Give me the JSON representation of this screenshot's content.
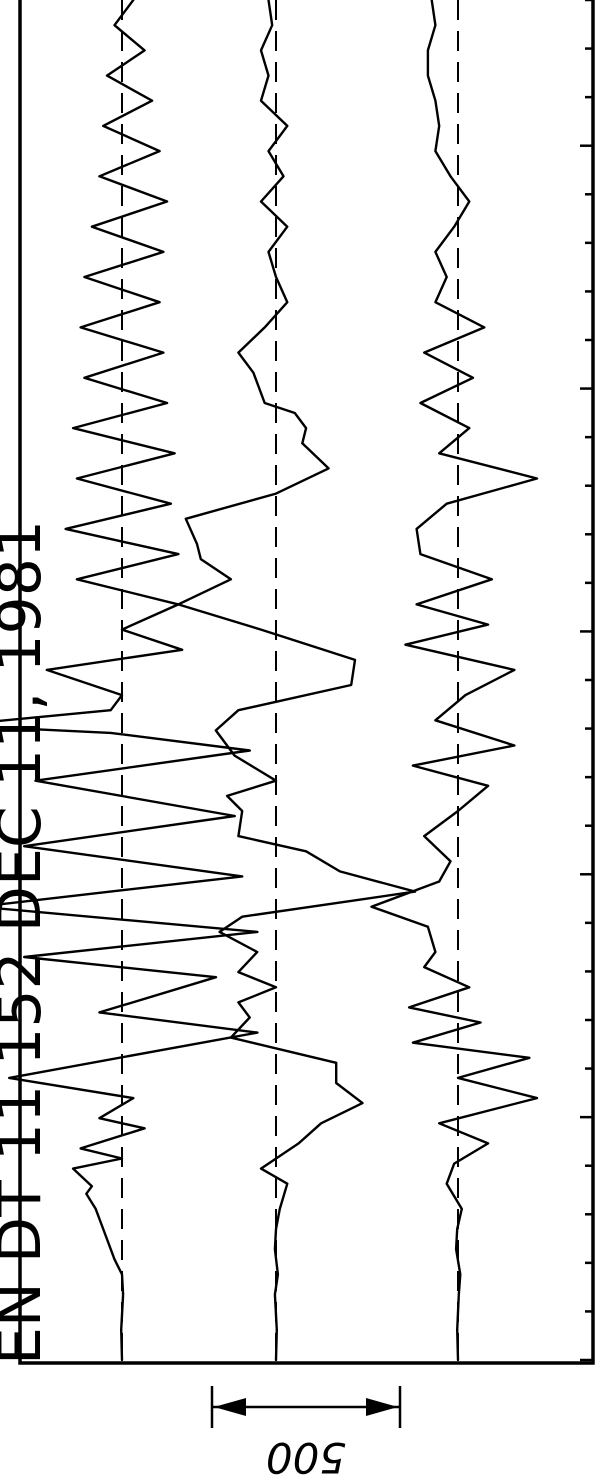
{
  "chart_data": {
    "type": "line",
    "title": "EN  DT  11  152    DEC 11, 1981",
    "scale_bar": {
      "label": "500",
      "value": 500
    },
    "grid": false,
    "legend": "none",
    "x_ticks": 29,
    "series": [
      {
        "values": [
          [
            0,
            0
          ],
          [
            60,
            -2
          ],
          [
            130,
            3
          ],
          [
            170,
            0
          ],
          [
            200,
            -20
          ],
          [
            260,
            -50
          ],
          [
            300,
            -70
          ],
          [
            330,
            -95
          ],
          [
            345,
            -80
          ],
          [
            380,
            -130
          ],
          [
            400,
            0
          ],
          [
            420,
            -110
          ],
          [
            460,
            60
          ],
          [
            480,
            -60
          ],
          [
            520,
            30
          ],
          [
            560,
            -300
          ],
          [
            650,
            360
          ],
          [
            690,
            -60
          ],
          [
            760,
            250
          ],
          [
            800,
            -260
          ],
          [
            850,
            360
          ],
          [
            900,
            -380
          ],
          [
            960,
            320
          ],
          [
            1020,
            -260
          ],
          [
            1080,
            300
          ],
          [
            1150,
            -230
          ],
          [
            1210,
            340
          ],
          [
            1245,
            -30
          ],
          [
            1260,
            -450
          ],
          [
            1290,
            -30
          ],
          [
            1320,
            0
          ],
          [
            1370,
            -200
          ],
          [
            1410,
            160
          ],
          [
            1450,
            0
          ],
          [
            1500,
            150
          ],
          [
            1550,
            -120
          ],
          [
            1600,
            150
          ],
          [
            1650,
            -150
          ],
          [
            1700,
            130
          ],
          [
            1750,
            -120
          ],
          [
            1800,
            140
          ],
          [
            1850,
            -130
          ],
          [
            1900,
            120
          ],
          [
            1950,
            -100
          ],
          [
            2000,
            110
          ],
          [
            2050,
            -110
          ],
          [
            2100,
            100
          ],
          [
            2150,
            -100
          ],
          [
            2200,
            110
          ],
          [
            2250,
            -80
          ],
          [
            2300,
            120
          ],
          [
            2350,
            -60
          ],
          [
            2400,
            100
          ],
          [
            2450,
            -50
          ],
          [
            2500,
            80
          ],
          [
            2550,
            -40
          ],
          [
            2600,
            60
          ],
          [
            2650,
            -20
          ],
          [
            2700,
            30
          ]
        ]
      },
      {
        "values": [
          [
            0,
            0
          ],
          [
            60,
            2
          ],
          [
            130,
            -3
          ],
          [
            170,
            5
          ],
          [
            220,
            -3
          ],
          [
            260,
            0
          ],
          [
            300,
            10
          ],
          [
            350,
            30
          ],
          [
            380,
            -40
          ],
          [
            430,
            60
          ],
          [
            470,
            120
          ],
          [
            510,
            230
          ],
          [
            550,
            160
          ],
          [
            590,
            160
          ],
          [
            640,
            -120
          ],
          [
            680,
            -70
          ],
          [
            710,
            -100
          ],
          [
            740,
            0
          ],
          [
            770,
            -100
          ],
          [
            810,
            -50
          ],
          [
            850,
            -150
          ],
          [
            880,
            -90
          ],
          [
            930,
            370
          ],
          [
            970,
            170
          ],
          [
            1010,
            80
          ],
          [
            1040,
            -100
          ],
          [
            1090,
            -90
          ],
          [
            1120,
            -130
          ],
          [
            1150,
            0
          ],
          [
            1200,
            -110
          ],
          [
            1250,
            -160
          ],
          [
            1290,
            -100
          ],
          [
            1340,
            200
          ],
          [
            1390,
            210
          ],
          [
            1450,
            -40
          ],
          [
            1500,
            -260
          ],
          [
            1550,
            -120
          ],
          [
            1590,
            -200
          ],
          [
            1620,
            -210
          ],
          [
            1670,
            -240
          ],
          [
            1720,
            0
          ],
          [
            1770,
            140
          ],
          [
            1820,
            70
          ],
          [
            1850,
            80
          ],
          [
            1880,
            50
          ],
          [
            1900,
            -30
          ],
          [
            1960,
            -60
          ],
          [
            2000,
            -100
          ],
          [
            2050,
            -30
          ],
          [
            2100,
            30
          ],
          [
            2150,
            0
          ],
          [
            2200,
            -20
          ],
          [
            2250,
            30
          ],
          [
            2300,
            -40
          ],
          [
            2350,
            20
          ],
          [
            2400,
            -20
          ],
          [
            2450,
            30
          ],
          [
            2500,
            -40
          ],
          [
            2550,
            -20
          ],
          [
            2600,
            -40
          ],
          [
            2650,
            -10
          ],
          [
            2700,
            -20
          ]
        ]
      },
      {
        "values": [
          [
            0,
            0
          ],
          [
            60,
            -2
          ],
          [
            130,
            2
          ],
          [
            170,
            6
          ],
          [
            220,
            -5
          ],
          [
            260,
            -2
          ],
          [
            300,
            10
          ],
          [
            350,
            -30
          ],
          [
            390,
            -10
          ],
          [
            430,
            80
          ],
          [
            470,
            -50
          ],
          [
            520,
            210
          ],
          [
            560,
            0
          ],
          [
            600,
            190
          ],
          [
            630,
            -120
          ],
          [
            670,
            60
          ],
          [
            700,
            -130
          ],
          [
            740,
            30
          ],
          [
            780,
            -90
          ],
          [
            810,
            -60
          ],
          [
            860,
            -80
          ],
          [
            900,
            -230
          ],
          [
            950,
            -50
          ],
          [
            990,
            -20
          ],
          [
            1040,
            -90
          ],
          [
            1090,
            0
          ],
          [
            1140,
            80
          ],
          [
            1180,
            -120
          ],
          [
            1220,
            150
          ],
          [
            1270,
            -60
          ],
          [
            1320,
            20
          ],
          [
            1370,
            150
          ],
          [
            1420,
            -140
          ],
          [
            1460,
            80
          ],
          [
            1500,
            -110
          ],
          [
            1550,
            90
          ],
          [
            1600,
            -100
          ],
          [
            1650,
            -110
          ],
          [
            1700,
            -30
          ],
          [
            1750,
            210
          ],
          [
            1800,
            -50
          ],
          [
            1850,
            30
          ],
          [
            1900,
            -100
          ],
          [
            1950,
            40
          ],
          [
            2000,
            -90
          ],
          [
            2050,
            70
          ],
          [
            2100,
            -60
          ],
          [
            2150,
            -30
          ],
          [
            2200,
            -60
          ],
          [
            2250,
            -10
          ],
          [
            2300,
            30
          ],
          [
            2350,
            -20
          ],
          [
            2400,
            -60
          ],
          [
            2450,
            -50
          ],
          [
            2500,
            -60
          ],
          [
            2550,
            -80
          ],
          [
            2600,
            -80
          ],
          [
            2650,
            -60
          ],
          [
            2700,
            -70
          ]
        ]
      }
    ]
  }
}
